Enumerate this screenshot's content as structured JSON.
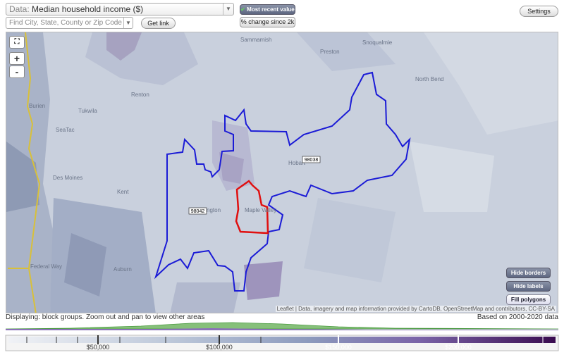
{
  "controls": {
    "data_prefix": "Data:",
    "data_value": "Median household income ($)",
    "search_placeholder": "Find City, State, County or Zip Code",
    "get_link": "Get link",
    "most_recent": "Most recent value",
    "pct_change": "% change since 2k",
    "settings": "Settings"
  },
  "map": {
    "zoom_in": "+",
    "zoom_out": "-",
    "place_labels": [
      "Sammamish",
      "Preston",
      "Snoqualmie",
      "North Bend",
      "Renton",
      "Burien",
      "Tukwila",
      "SeaTac",
      "Hobart",
      "Des Moines",
      "Kent",
      "Covington",
      "Maple Valley",
      "Federal Way",
      "Auburn"
    ],
    "zip_labels": [
      "98038",
      "98042"
    ],
    "buttons": [
      "Hide borders",
      "Hide labels",
      "Fill polygons"
    ],
    "attribution": "Leaflet | Data, imagery and map information provided by CartoDB, OpenStreetMap and contributors, CC-BY-SA"
  },
  "status": {
    "displaying": "Displaying: block groups. Zoom out and pan to view other areas",
    "based_on": "Based on 2000-2020 data"
  },
  "legend": {
    "tick_labels": [
      "$50,000",
      "$100,000",
      "$150,000",
      "$200,000"
    ]
  }
}
